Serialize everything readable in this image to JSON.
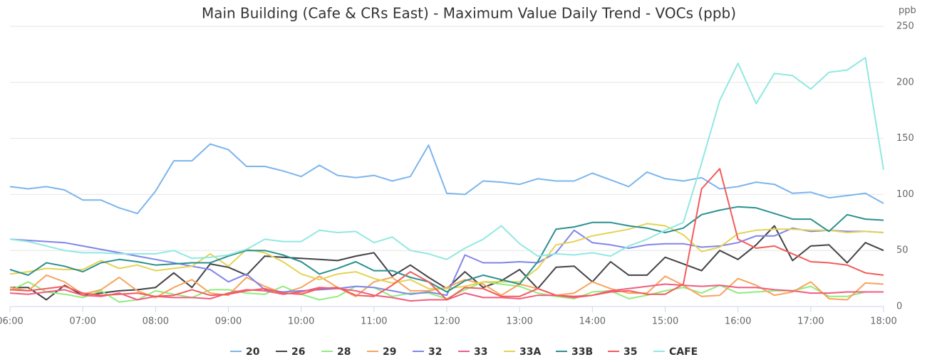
{
  "chart_data": {
    "type": "line",
    "title": "Main Building (Cafe & CRs East) - Maximum Value Daily Trend - VOCs (ppb)",
    "y_unit": "ppb",
    "categories": [
      "06:00",
      null,
      null,
      null,
      "07:00",
      null,
      null,
      null,
      "08:00",
      null,
      null,
      null,
      "09:00",
      null,
      null,
      null,
      "10:00",
      null,
      null,
      null,
      "11:00",
      null,
      null,
      null,
      "12:00",
      null,
      null,
      null,
      "13:00",
      null,
      null,
      null,
      "14:00",
      null,
      null,
      null,
      "15:00",
      null,
      null,
      null,
      "16:00",
      null,
      null,
      null,
      "17:00",
      null,
      null,
      null,
      "18:00"
    ],
    "ylim": [
      0,
      250
    ],
    "yticks": [
      0,
      50,
      100,
      150,
      200,
      250
    ],
    "grid": true,
    "series": [
      {
        "name": "20",
        "color": "#7cb5ec",
        "values": [
          107,
          105,
          107,
          104,
          95,
          95,
          88,
          83,
          103,
          130,
          130,
          145,
          140,
          125,
          125,
          121,
          116,
          126,
          117,
          115,
          117,
          112,
          116,
          144,
          101,
          100,
          112,
          111,
          109,
          114,
          112,
          112,
          119,
          113,
          107,
          120,
          114,
          112,
          115,
          105,
          107,
          111,
          109,
          101,
          102,
          97,
          99,
          101,
          92
        ]
      },
      {
        "name": "26",
        "color": "#434348",
        "values": [
          17,
          17,
          6,
          19,
          10,
          12,
          14,
          15,
          17,
          30,
          17,
          38,
          35,
          28,
          45,
          44,
          43,
          42,
          41,
          45,
          48,
          27,
          37,
          26,
          16,
          31,
          17,
          23,
          33,
          16,
          35,
          36,
          22,
          40,
          28,
          28,
          44,
          38,
          32,
          50,
          42,
          55,
          72,
          41,
          54,
          55,
          39,
          57,
          50
        ]
      },
      {
        "name": "28",
        "color": "#90ed7d",
        "values": [
          14,
          22,
          13,
          11,
          8,
          14,
          4,
          6,
          14,
          11,
          8,
          15,
          15,
          12,
          11,
          18,
          11,
          6,
          9,
          18,
          17,
          9,
          12,
          12,
          7,
          15,
          22,
          20,
          18,
          12,
          9,
          7,
          13,
          14,
          7,
          10,
          14,
          17,
          12,
          19,
          12,
          13,
          14,
          14,
          18,
          9,
          9,
          13,
          13
        ]
      },
      {
        "name": "29",
        "color": "#f7a35c",
        "values": [
          17,
          14,
          28,
          22,
          11,
          15,
          26,
          14,
          8,
          17,
          24,
          12,
          10,
          26,
          18,
          12,
          17,
          27,
          17,
          9,
          22,
          26,
          14,
          14,
          17,
          24,
          20,
          10,
          20,
          16,
          10,
          12,
          22,
          16,
          12,
          12,
          27,
          19,
          9,
          10,
          25,
          19,
          10,
          13,
          22,
          7,
          6,
          21,
          20
        ]
      },
      {
        "name": "32",
        "color": "#8085e9",
        "values": [
          60,
          59,
          58,
          57,
          54,
          51,
          48,
          45,
          42,
          39,
          36,
          33,
          22,
          29,
          15,
          13,
          14,
          15,
          16,
          18,
          17,
          14,
          11,
          13,
          10,
          46,
          39,
          39,
          40,
          39,
          48,
          68,
          57,
          55,
          52,
          55,
          56,
          56,
          53,
          54,
          57,
          63,
          63,
          70,
          67,
          68,
          67,
          67,
          66
        ]
      },
      {
        "name": "33",
        "color": "#f15c80",
        "values": [
          12,
          11,
          13,
          15,
          10,
          9,
          12,
          6,
          9,
          8,
          8,
          7,
          12,
          15,
          14,
          11,
          13,
          17,
          16,
          14,
          10,
          8,
          5,
          6,
          6,
          12,
          8,
          8,
          7,
          10,
          10,
          8,
          10,
          14,
          16,
          18,
          20,
          19,
          18,
          19,
          17,
          17,
          15,
          14,
          12,
          12,
          13,
          13,
          13
        ]
      },
      {
        "name": "33A",
        "color": "#e4d354",
        "values": [
          29,
          31,
          34,
          33,
          33,
          41,
          34,
          37,
          32,
          34,
          36,
          47,
          36,
          51,
          48,
          40,
          29,
          24,
          29,
          31,
          25,
          21,
          24,
          16,
          16,
          18,
          22,
          22,
          22,
          34,
          55,
          58,
          63,
          66,
          69,
          74,
          72,
          64,
          49,
          53,
          65,
          68,
          69,
          69,
          68,
          68,
          66,
          67,
          66
        ]
      },
      {
        "name": "33B",
        "color": "#2b908f",
        "values": [
          33,
          28,
          39,
          36,
          31,
          39,
          42,
          40,
          37,
          38,
          39,
          39,
          45,
          50,
          50,
          46,
          40,
          29,
          34,
          40,
          32,
          32,
          26,
          22,
          13,
          23,
          28,
          24,
          20,
          40,
          69,
          71,
          75,
          75,
          72,
          70,
          66,
          70,
          82,
          86,
          89,
          88,
          83,
          78,
          78,
          67,
          82,
          78,
          77
        ]
      },
      {
        "name": "35",
        "color": "#f45b5b",
        "values": [
          15,
          14,
          16,
          18,
          12,
          10,
          11,
          12,
          9,
          10,
          15,
          10,
          11,
          14,
          16,
          12,
          11,
          16,
          17,
          10,
          9,
          19,
          31,
          22,
          6,
          17,
          16,
          9,
          9,
          16,
          10,
          9,
          10,
          13,
          14,
          11,
          11,
          20,
          105,
          123,
          60,
          52,
          54,
          47,
          40,
          39,
          37,
          30,
          28
        ]
      },
      {
        "name": "CAFE",
        "color": "#91e8e1",
        "values": [
          60,
          58,
          54,
          50,
          48,
          48,
          47,
          47,
          47,
          50,
          43,
          44,
          46,
          51,
          60,
          58,
          58,
          68,
          66,
          67,
          57,
          62,
          50,
          47,
          42,
          52,
          60,
          72,
          56,
          45,
          47,
          46,
          48,
          45,
          54,
          60,
          68,
          75,
          128,
          184,
          217,
          181,
          208,
          206,
          194,
          209,
          211,
          222,
          122
        ]
      }
    ]
  }
}
